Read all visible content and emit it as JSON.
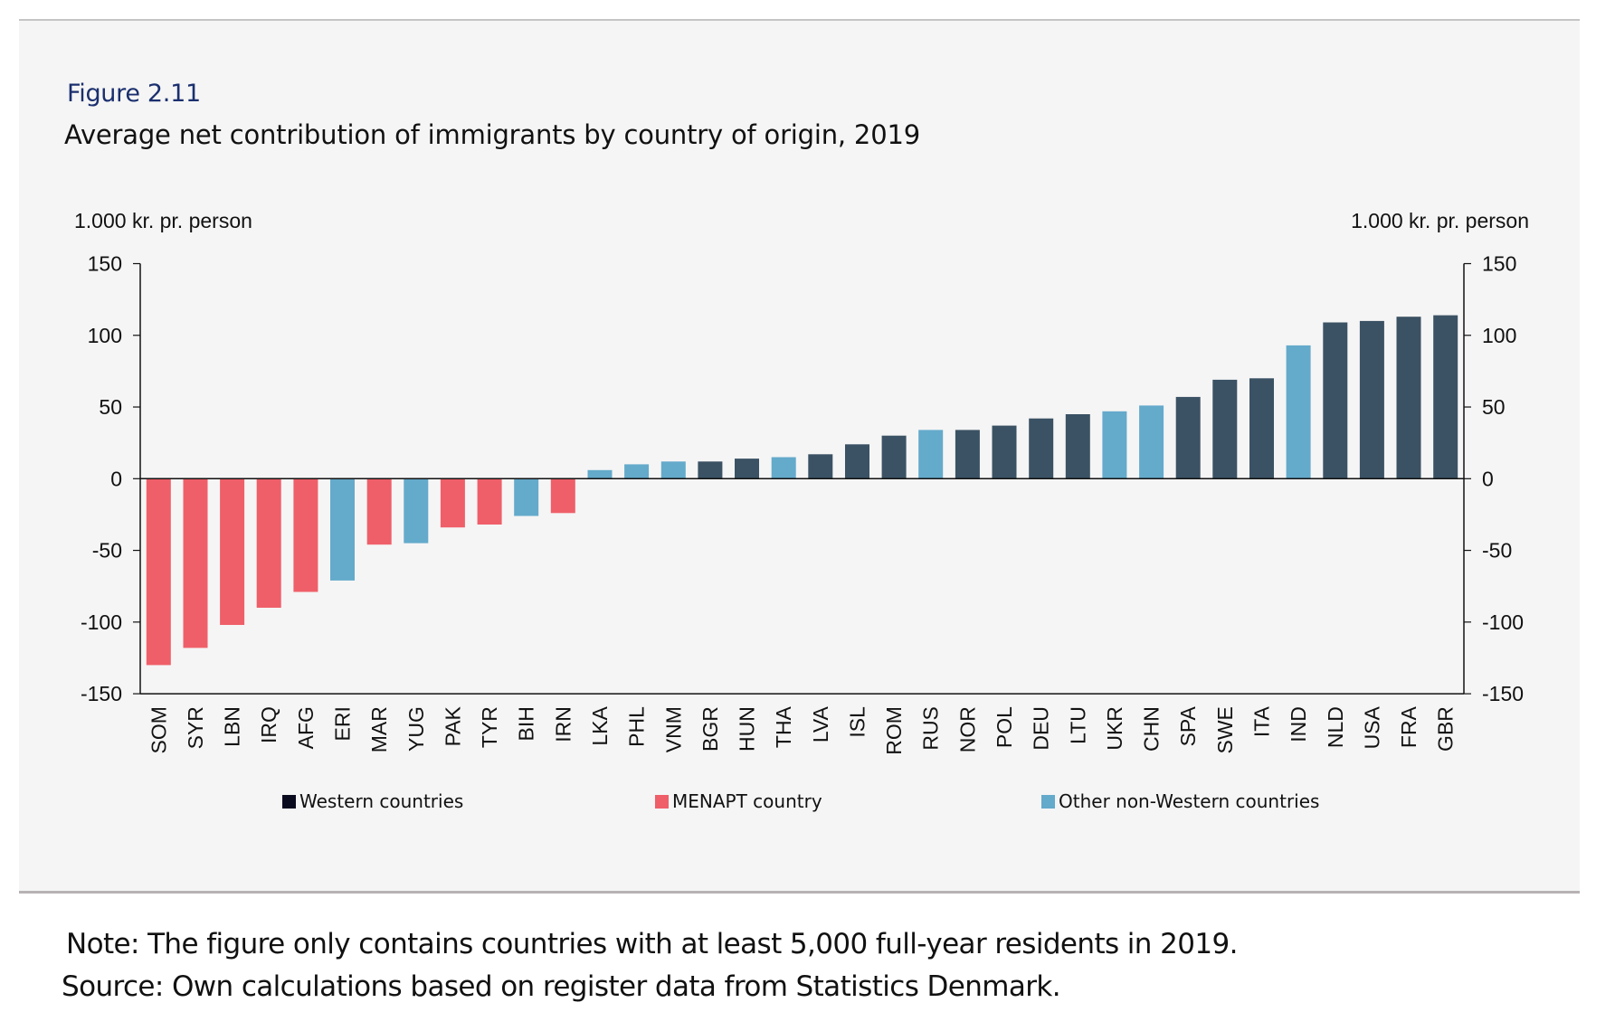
{
  "figure_label": "Figure 2.11",
  "title": "Average net contribution of immigrants by country of origin, 2019",
  "left_axis_unit": "1.000 kr. pr. person",
  "right_axis_unit": "1.000 kr. pr. person",
  "note": "Note: The figure only contains countries with at least 5,000 full-year residents in 2019.",
  "source": "Source: Own calculations based on register data from Statistics Denmark.",
  "legend": [
    {
      "key": "western",
      "label": "Western countries",
      "color": "#0b0b20"
    },
    {
      "key": "menapt",
      "label": "MENAPT country",
      "color": "#ef5f69"
    },
    {
      "key": "other",
      "label": "Other non-Western countries",
      "color": "#64aacb"
    }
  ],
  "colors": {
    "western": "#3b5264",
    "menapt": "#ef5f69",
    "other": "#64aacb",
    "axis": "#111111",
    "background": "#f5f5f5"
  },
  "chart_data": {
    "type": "bar",
    "title": "Average net contribution of immigrants by country of origin, 2019",
    "xlabel": "",
    "ylabel": "1.000 kr. pr. person",
    "ylim": [
      -150,
      150
    ],
    "yticks": [
      150,
      100,
      50,
      0,
      -50,
      -100,
      -150
    ],
    "grid": false,
    "dual_y_axis": true,
    "legend_position": "bottom",
    "categories": [
      "SOM",
      "SYR",
      "LBN",
      "IRQ",
      "AFG",
      "ERI",
      "MAR",
      "YUG",
      "PAK",
      "TYR",
      "BIH",
      "IRN",
      "LKA",
      "PHL",
      "VNM",
      "BGR",
      "HUN",
      "THA",
      "LVA",
      "ISL",
      "ROM",
      "RUS",
      "NOR",
      "POL",
      "DEU",
      "LTU",
      "UKR",
      "CHN",
      "SPA",
      "SWE",
      "ITA",
      "IND",
      "NLD",
      "USA",
      "FRA",
      "GBR"
    ],
    "values": [
      -130,
      -118,
      -102,
      -90,
      -79,
      -71,
      -46,
      -45,
      -34,
      -32,
      -26,
      -24,
      6,
      10,
      12,
      12,
      14,
      15,
      17,
      24,
      30,
      34,
      34,
      37,
      42,
      45,
      47,
      51,
      57,
      69,
      70,
      93,
      109,
      110,
      113,
      114
    ],
    "groups": [
      "menapt",
      "menapt",
      "menapt",
      "menapt",
      "menapt",
      "other",
      "menapt",
      "other",
      "menapt",
      "menapt",
      "other",
      "menapt",
      "other",
      "other",
      "other",
      "western",
      "western",
      "other",
      "western",
      "western",
      "western",
      "other",
      "western",
      "western",
      "western",
      "western",
      "other",
      "other",
      "western",
      "western",
      "western",
      "other",
      "western",
      "western",
      "western",
      "western"
    ],
    "series": [
      {
        "name": "Western countries",
        "key": "western"
      },
      {
        "name": "MENAPT country",
        "key": "menapt"
      },
      {
        "name": "Other non-Western countries",
        "key": "other"
      }
    ]
  }
}
